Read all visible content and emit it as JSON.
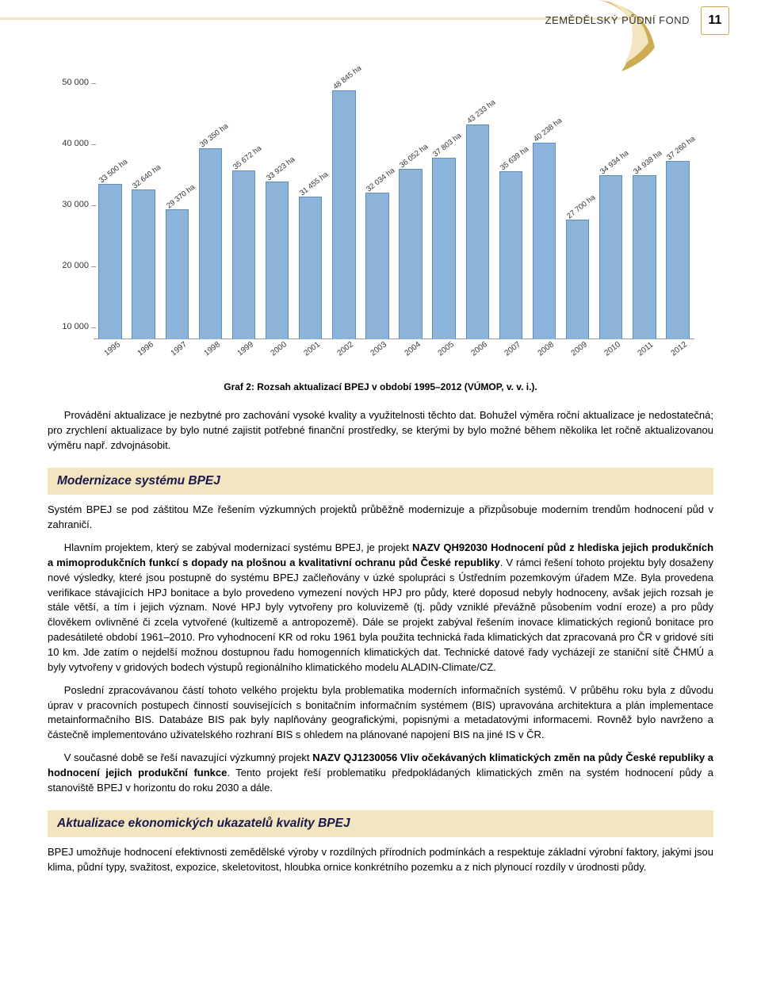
{
  "header": {
    "section": "ZEMĚDĚLSKÝ PŮDNÍ FOND",
    "page_number": "11",
    "accent_color": "#c9a84a",
    "accent_fill": "#f2e5c0"
  },
  "chart": {
    "type": "bar",
    "ytick_labels": [
      "10 000",
      "20 000",
      "30 000",
      "40 000",
      "50 000"
    ],
    "ytick_values": [
      10000,
      20000,
      30000,
      40000,
      50000
    ],
    "ymax": 52000,
    "ymin": 8000,
    "bar_color": "#8cb3d9",
    "bar_border": "#5e8fbd",
    "categories": [
      "1995",
      "1996",
      "1997",
      "1998",
      "1999",
      "2000",
      "2001",
      "2002",
      "2003",
      "2004",
      "2005",
      "2006",
      "2007",
      "2008",
      "2009",
      "2010",
      "2011",
      "2012"
    ],
    "values": [
      33500,
      32640,
      29370,
      39350,
      35672,
      33923,
      31455,
      48845,
      32034,
      36052,
      37803,
      43233,
      35639,
      40238,
      27700,
      34934,
      34938,
      37260
    ],
    "value_labels": [
      "33 500 ha",
      "32 640 ha",
      "29 370 ha",
      "39 350 ha",
      "35 672 ha",
      "33 923 ha",
      "31 455 ha",
      "48 845 ha",
      "32 034 ha",
      "36 052 ha",
      "37 803 ha",
      "43 233 ha",
      "35 639 ha",
      "40 238 ha",
      "27 700 ha",
      "34 934 ha",
      "34 938 ha",
      "37 260 ha"
    ],
    "caption": "Graf 2: Rozsah aktualizací BPEJ v období 1995–2012 (VÚMOP, v. v. i.).",
    "bar_gap_ratio": 0.3,
    "label_fontsize": 9.5,
    "tick_fontsize": 10
  },
  "paragraphs": {
    "intro": "Provádění aktualizace je nezbytné pro zachování vysoké kvality a využitelnosti těchto dat. Bohužel výměra roční aktualizace je nedostatečná; pro zrychlení aktualizace by bylo nutné zajistit potřebné finanční prostředky, se kterými by bylo možné během několika let ročně aktualizovanou výměru např. zdvojnásobit."
  },
  "section1": {
    "heading": "Modernizace systému BPEJ",
    "p1": "Systém BPEJ se pod záštitou MZe řešením výzkumných projektů průběžně modernizuje a přizpůsobuje moderním trendům hodnocení půd v zahraničí.",
    "p2_a": "Hlavním projektem, který se zabýval modernizací systému BPEJ, je projekt ",
    "p2_b": "NAZV QH92030 Hodnocení půd z hlediska jejich produkčních a mimoprodukčních funkcí s dopady na plošnou a kvalitativní ochranu půd České republiky",
    "p2_c": ". V rámci řešení tohoto projektu byly dosaženy nové výsledky, které jsou postupně do systému BPEJ začleňovány v úzké spolupráci s Ústředním pozemkovým úřadem MZe. Byla provedena verifikace stávajících HPJ bonitace a bylo provedeno vymezení nových HPJ pro půdy, které doposud nebyly hodnoceny, avšak jejich rozsah je stále větší, a tím i jejich význam. Nové HPJ byly vytvořeny pro koluvizemě (tj. půdy vzniklé převážně působením vodní eroze) a pro půdy člověkem ovlivněné či zcela vytvořené (kultizemě a antropozemě). Dále se projekt zabýval řešením inovace klimatických regionů bonitace pro padesátileté období 1961–2010. Pro vyhodnocení KR od roku 1961 byla použita technická řada klimatických dat zpracovaná pro ČR v gridové síti 10 km. Jde zatím o nejdelší možnou dostupnou řadu homogenních klimatických dat. Technické datové řady vycházejí ze staniční sítě ČHMÚ a byly vytvořeny v gridových bodech výstupů regionálního klimatického modelu ALADIN-Climate/CZ.",
    "p3": "Poslední zpracovávanou částí tohoto velkého projektu byla problematika moderních informačních systémů. V průběhu roku byla z důvodu úprav v pracovních postupech činností souvisejících s bonitačním informačním systémem (BIS) upravována architektura a plán implementace metainformačního BIS. Databáze BIS pak byly naplňovány geografickými, popisnými a metadatovými informacemi. Rovněž bylo navrženo a částečně implementováno uživatelského rozhraní BIS s ohledem na plánované napojení BIS na jiné IS v ČR.",
    "p4_a": "V současné době se řeší navazující výzkumný projekt ",
    "p4_b": "NAZV QJ1230056 Vliv očekávaných klimatických změn na půdy České republiky a hodnocení jejich produkční funkce",
    "p4_c": ". Tento projekt řeší problematiku předpokládaných klimatických změn na systém hodnocení půdy a stanoviště BPEJ v horizontu do roku 2030 a dále."
  },
  "section2": {
    "heading": "Aktualizace ekonomických ukazatelů kvality BPEJ",
    "p1": "BPEJ umožňuje hodnocení efektivnosti zemědělské výroby v rozdílných přírodních podmínkách a respektuje základní výrobní faktory, jakými jsou klima, půdní typy, svažitost, expozice, skeletovitost, hloubka ornice konkrétního pozemku a z nich plynoucí rozdíly v úrodnosti půdy."
  }
}
